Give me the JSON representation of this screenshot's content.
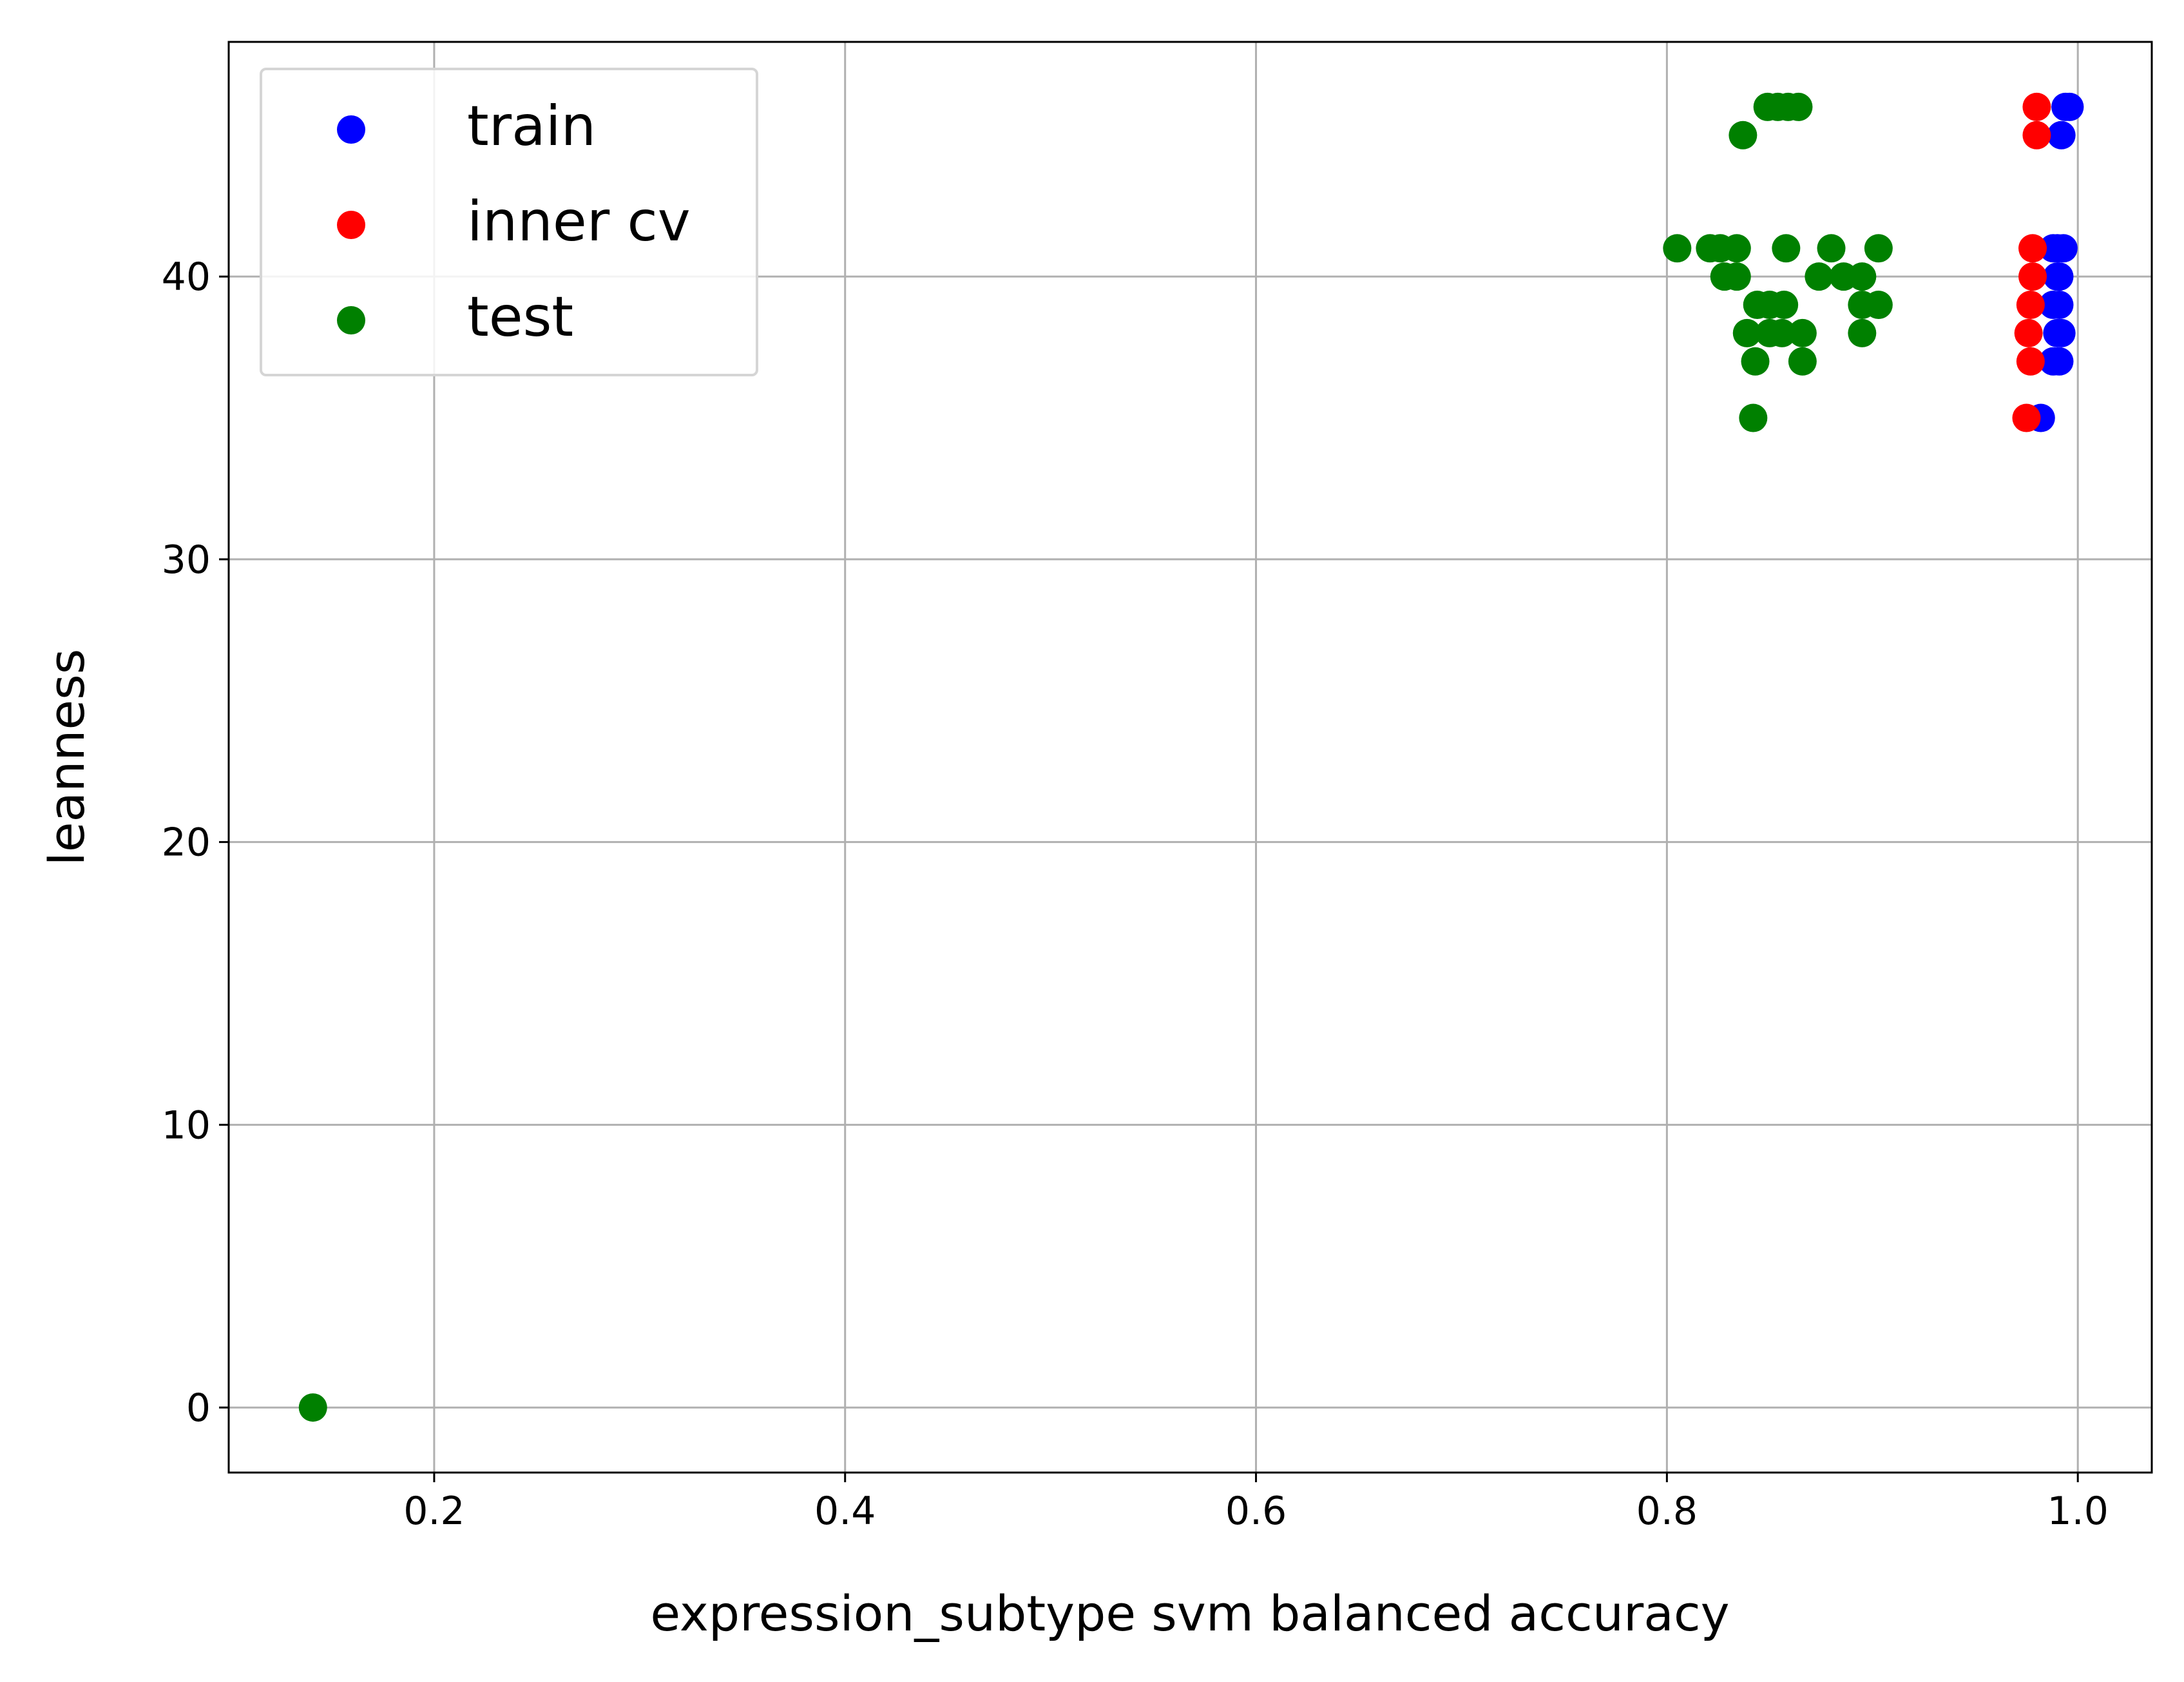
{
  "chart_data": {
    "type": "scatter",
    "xlabel": "expression_subtype svm balanced accuracy",
    "ylabel": "leanness",
    "xlim": [
      0.1,
      1.036
    ],
    "ylim": [
      -2.3,
      48.3
    ],
    "xticks": [
      0.2,
      0.4,
      0.6,
      0.8,
      1.0
    ],
    "xtick_labels": [
      "0.2",
      "0.4",
      "0.6",
      "0.8",
      "1.0"
    ],
    "yticks": [
      0,
      10,
      20,
      30,
      40
    ],
    "ytick_labels": [
      "0",
      "10",
      "20",
      "30",
      "40"
    ],
    "grid": true,
    "legend_position": "top-left",
    "series": [
      {
        "name": "train",
        "color": "#0000ff",
        "points": [
          [
            0.994,
            46
          ],
          [
            0.996,
            46
          ],
          [
            0.992,
            45
          ],
          [
            0.99,
            41
          ],
          [
            0.993,
            41
          ],
          [
            0.988,
            41
          ],
          [
            0.99,
            40
          ],
          [
            0.991,
            40
          ],
          [
            0.988,
            39
          ],
          [
            0.991,
            39
          ],
          [
            0.99,
            38
          ],
          [
            0.992,
            38
          ],
          [
            0.988,
            37
          ],
          [
            0.991,
            37
          ],
          [
            0.982,
            35
          ]
        ]
      },
      {
        "name": "inner cv",
        "color": "#ff0000",
        "points": [
          [
            0.98,
            46
          ],
          [
            0.98,
            45
          ],
          [
            0.978,
            41
          ],
          [
            0.978,
            40
          ],
          [
            0.977,
            39
          ],
          [
            0.976,
            38
          ],
          [
            0.977,
            37
          ],
          [
            0.975,
            35
          ]
        ]
      },
      {
        "name": "test",
        "color": "#008000",
        "points": [
          [
            0.849,
            46
          ],
          [
            0.854,
            46
          ],
          [
            0.859,
            46
          ],
          [
            0.864,
            46
          ],
          [
            0.837,
            45
          ],
          [
            0.805,
            41
          ],
          [
            0.821,
            41
          ],
          [
            0.826,
            41
          ],
          [
            0.834,
            41
          ],
          [
            0.858,
            41
          ],
          [
            0.88,
            41
          ],
          [
            0.903,
            41
          ],
          [
            0.828,
            40
          ],
          [
            0.834,
            40
          ],
          [
            0.874,
            40
          ],
          [
            0.886,
            40
          ],
          [
            0.895,
            40
          ],
          [
            0.844,
            39
          ],
          [
            0.85,
            39
          ],
          [
            0.857,
            39
          ],
          [
            0.895,
            39
          ],
          [
            0.903,
            39
          ],
          [
            0.839,
            38
          ],
          [
            0.85,
            38
          ],
          [
            0.856,
            38
          ],
          [
            0.866,
            38
          ],
          [
            0.895,
            38
          ],
          [
            0.843,
            37
          ],
          [
            0.866,
            37
          ],
          [
            0.842,
            35
          ],
          [
            0.141,
            0
          ]
        ]
      }
    ]
  }
}
